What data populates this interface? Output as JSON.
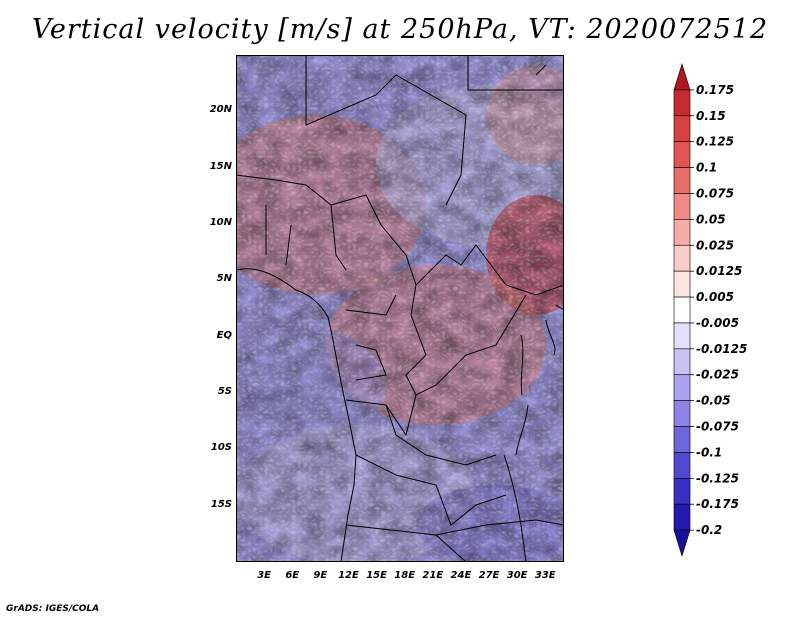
{
  "title": "Vertical velocity [m/s] at 250hPa, VT: 2020072512",
  "credit": "GrADS: IGES/COLA",
  "map": {
    "lat_labels": [
      "20N",
      "15N",
      "10N",
      "5N",
      "EQ",
      "5S",
      "10S",
      "15S"
    ],
    "lon_labels": [
      "3E",
      "6E",
      "9E",
      "12E",
      "15E",
      "18E",
      "21E",
      "24E",
      "27E",
      "30E",
      "33E"
    ],
    "lon_range": [
      0,
      35
    ],
    "lat_range": [
      -20,
      25
    ]
  },
  "colorbar": {
    "levels": [
      "0.175",
      "0.15",
      "0.125",
      "0.1",
      "0.075",
      "0.05",
      "0.025",
      "0.0125",
      "0.005",
      "-0.005",
      "-0.0125",
      "-0.025",
      "-0.05",
      "-0.075",
      "-0.1",
      "-0.125",
      "-0.175",
      "-0.2"
    ],
    "colors": [
      "#b01820",
      "#c52a2e",
      "#d6403f",
      "#e25452",
      "#ea6e6b",
      "#f08a86",
      "#f5aba7",
      "#f9cdca",
      "#fbe6e4",
      "#ffffff",
      "#e2e0fb",
      "#c6c2f5",
      "#a9a3ee",
      "#8c84e6",
      "#6f66dd",
      "#5249d2",
      "#3a30c3",
      "#2418b0",
      "#18109a"
    ]
  }
}
